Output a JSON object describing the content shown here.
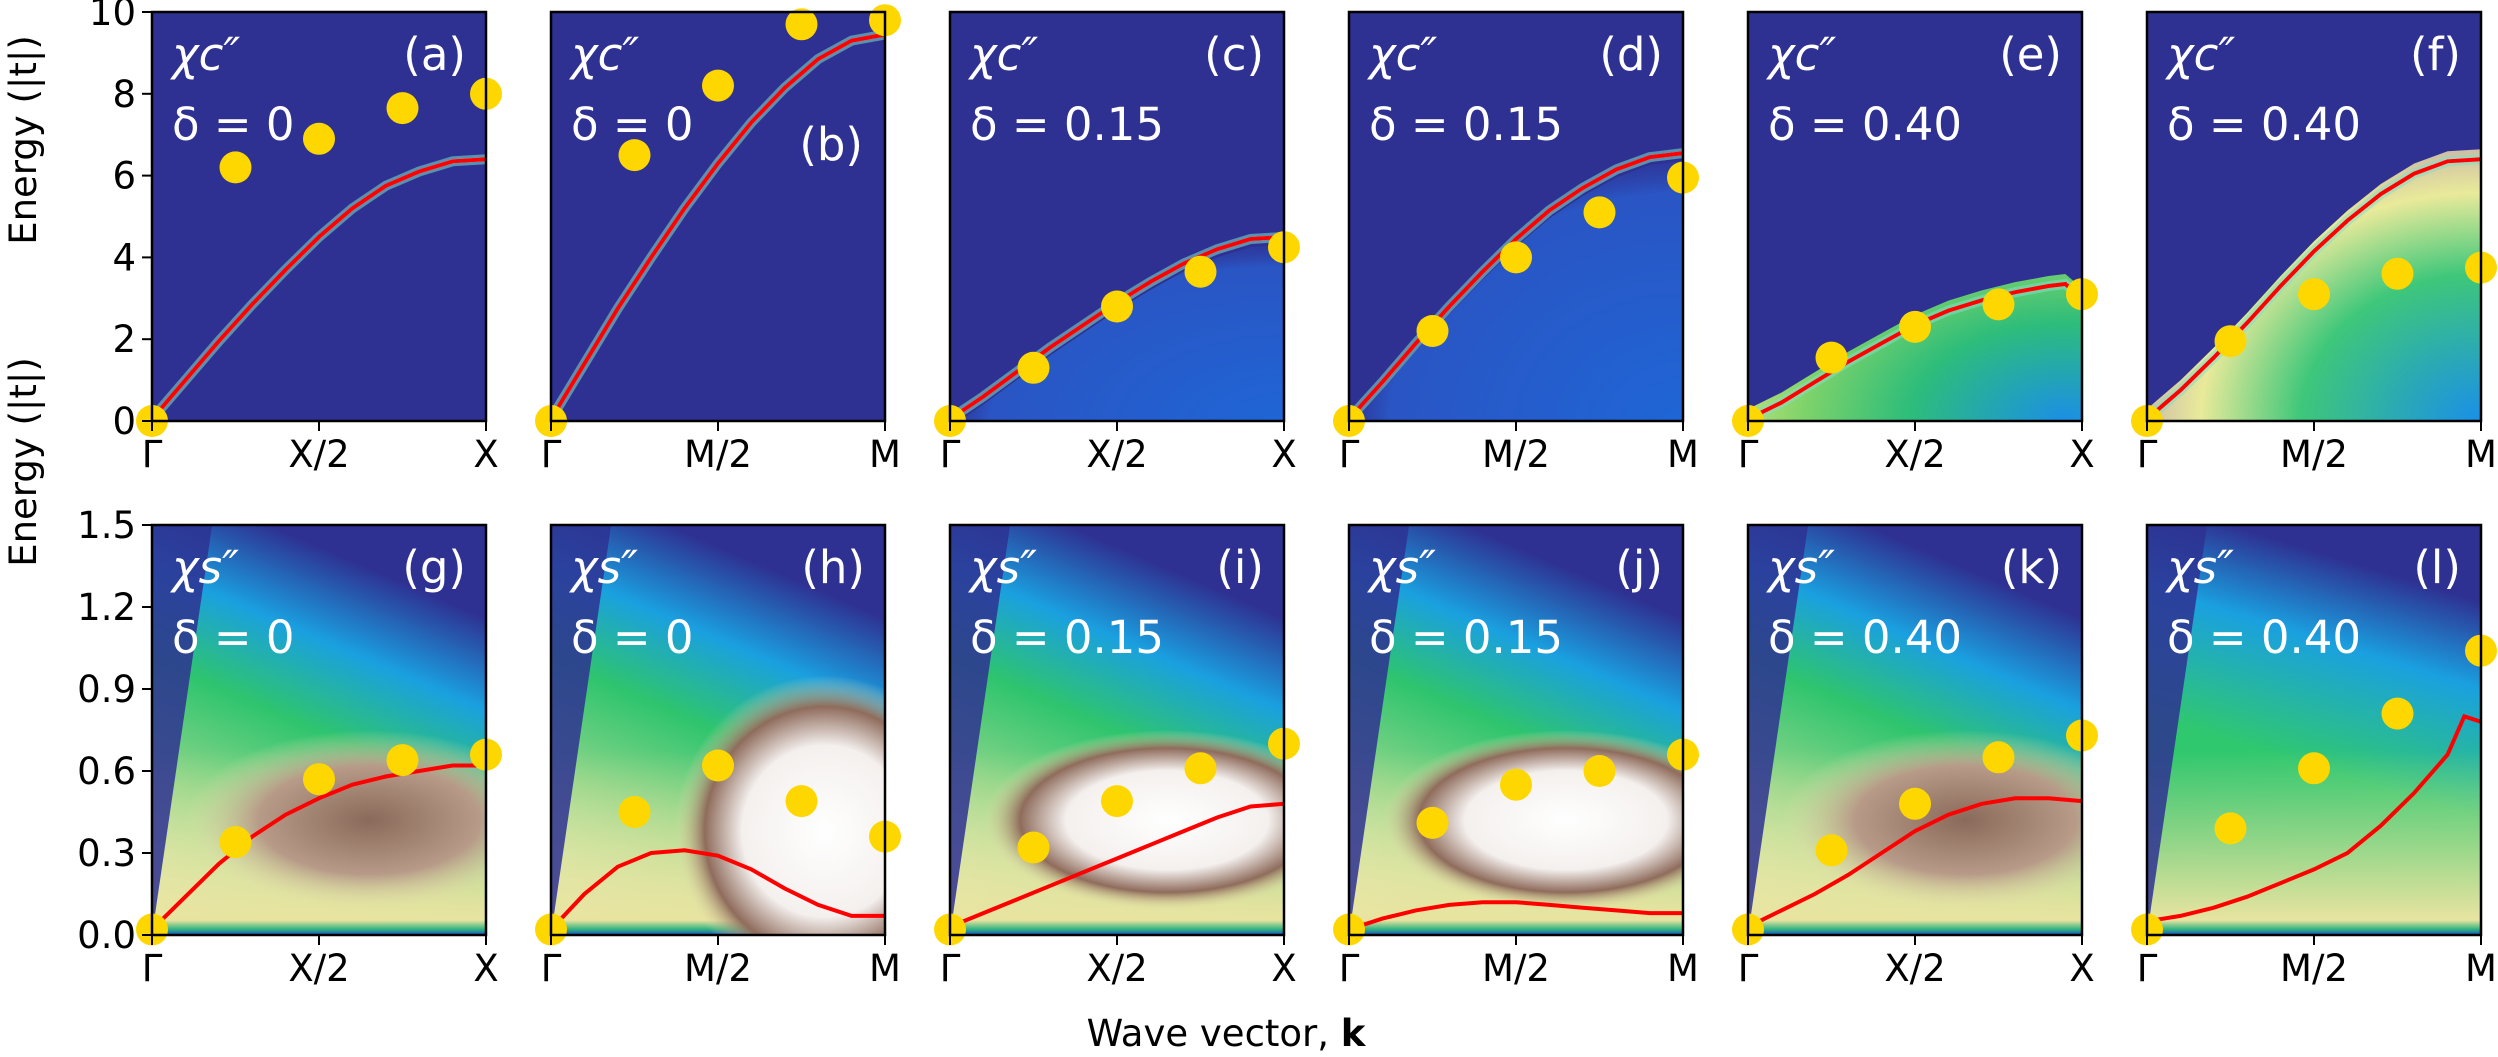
{
  "figure": {
    "y_label_top": "Energy (|t|)",
    "y_label_bottom": "Energy (|t|)",
    "x_label_text": "Wave vector, ",
    "x_label_bold": "k"
  },
  "colors": {
    "line": "#ff0000",
    "marker": "#ffd700",
    "background": "#2e3192"
  },
  "chart_data": [
    {
      "panel": "(a)",
      "type": "line",
      "row": "charge",
      "symbol": "χc″",
      "delta_label": "δ = 0",
      "xticks": [
        "Γ",
        "X/2",
        "X"
      ],
      "xlim": [
        0,
        1
      ],
      "ylim": [
        0,
        10
      ],
      "yticks": [
        "0",
        "2",
        "4",
        "6",
        "8",
        "10"
      ],
      "line": {
        "x": [
          0,
          0.1,
          0.2,
          0.3,
          0.4,
          0.5,
          0.6,
          0.7,
          0.8,
          0.9,
          1.0
        ],
        "y": [
          0.05,
          1.0,
          1.95,
          2.85,
          3.7,
          4.5,
          5.2,
          5.75,
          6.1,
          6.35,
          6.4
        ]
      },
      "markers": {
        "x": [
          0,
          0.25,
          0.5,
          0.75,
          1.0
        ],
        "y": [
          0,
          6.2,
          6.9,
          7.65,
          8.0
        ]
      }
    },
    {
      "panel": "(b)",
      "type": "line",
      "row": "charge",
      "symbol": "χc″",
      "delta_label": "δ = 0",
      "xticks": [
        "Γ",
        "M/2",
        "M"
      ],
      "xlim": [
        0,
        1
      ],
      "ylim": [
        0,
        10
      ],
      "yticks": [],
      "line": {
        "x": [
          0,
          0.1,
          0.2,
          0.3,
          0.4,
          0.5,
          0.6,
          0.7,
          0.8,
          0.9,
          1.0
        ],
        "y": [
          0.05,
          1.4,
          2.75,
          4.0,
          5.2,
          6.3,
          7.3,
          8.15,
          8.85,
          9.3,
          9.45
        ]
      },
      "markers": {
        "x": [
          0,
          0.25,
          0.5,
          0.75,
          1.0
        ],
        "y": [
          0,
          6.5,
          8.2,
          9.7,
          9.8
        ]
      }
    },
    {
      "panel": "(c)",
      "type": "line",
      "row": "charge",
      "symbol": "χc″",
      "delta_label": "δ = 0.15",
      "xticks": [
        "Γ",
        "X/2",
        "X"
      ],
      "xlim": [
        0,
        1
      ],
      "ylim": [
        0,
        10
      ],
      "yticks": [],
      "line": {
        "x": [
          0,
          0.1,
          0.2,
          0.3,
          0.4,
          0.5,
          0.6,
          0.7,
          0.8,
          0.9,
          1.0
        ],
        "y": [
          0.05,
          0.6,
          1.2,
          1.8,
          2.35,
          2.9,
          3.4,
          3.85,
          4.2,
          4.45,
          4.5
        ]
      },
      "markers": {
        "x": [
          0,
          0.25,
          0.5,
          0.75,
          1.0
        ],
        "y": [
          0,
          1.3,
          2.8,
          3.65,
          4.25
        ]
      }
    },
    {
      "panel": "(d)",
      "type": "line",
      "row": "charge",
      "symbol": "χc″",
      "delta_label": "δ = 0.15",
      "xticks": [
        "Γ",
        "M/2",
        "M"
      ],
      "xlim": [
        0,
        1
      ],
      "ylim": [
        0,
        10
      ],
      "yticks": [],
      "line": {
        "x": [
          0,
          0.1,
          0.2,
          0.3,
          0.4,
          0.5,
          0.6,
          0.7,
          0.8,
          0.9,
          1.0
        ],
        "y": [
          0.05,
          0.95,
          1.9,
          2.8,
          3.65,
          4.45,
          5.15,
          5.7,
          6.15,
          6.45,
          6.55
        ]
      },
      "markers": {
        "x": [
          0,
          0.25,
          0.5,
          0.75,
          1.0
        ],
        "y": [
          0,
          2.2,
          4.0,
          5.1,
          5.95
        ]
      }
    },
    {
      "panel": "(e)",
      "type": "line",
      "row": "charge",
      "symbol": "χc″",
      "delta_label": "δ = 0.40",
      "xticks": [
        "Γ",
        "X/2",
        "X"
      ],
      "xlim": [
        0,
        1
      ],
      "ylim": [
        0,
        10
      ],
      "yticks": [],
      "line": {
        "x": [
          0,
          0.1,
          0.2,
          0.3,
          0.4,
          0.5,
          0.6,
          0.7,
          0.8,
          0.9,
          0.95,
          1.0
        ],
        "y": [
          0.05,
          0.45,
          0.95,
          1.45,
          1.9,
          2.35,
          2.7,
          2.95,
          3.15,
          3.3,
          3.35,
          3.0
        ]
      },
      "markers": {
        "x": [
          0,
          0.25,
          0.5,
          0.75,
          1.0
        ],
        "y": [
          0,
          1.55,
          2.3,
          2.85,
          3.1
        ]
      }
    },
    {
      "panel": "(f)",
      "type": "line",
      "row": "charge",
      "symbol": "χc″",
      "delta_label": "δ = 0.40",
      "xticks": [
        "Γ",
        "M/2",
        "M"
      ],
      "xlim": [
        0,
        1
      ],
      "ylim": [
        0,
        10
      ],
      "yticks": [],
      "line": {
        "x": [
          0,
          0.1,
          0.2,
          0.3,
          0.4,
          0.5,
          0.6,
          0.7,
          0.8,
          0.9,
          1.0
        ],
        "y": [
          0.05,
          0.75,
          1.55,
          2.4,
          3.3,
          4.15,
          4.9,
          5.55,
          6.05,
          6.35,
          6.4
        ]
      },
      "markers": {
        "x": [
          0,
          0.25,
          0.5,
          0.75,
          1.0
        ],
        "y": [
          0,
          1.95,
          3.1,
          3.6,
          3.75
        ]
      }
    },
    {
      "panel": "(g)",
      "type": "line",
      "row": "spin",
      "symbol": "χs″",
      "delta_label": "δ = 0",
      "xticks": [
        "Γ",
        "X/2",
        "X"
      ],
      "xlim": [
        0,
        1
      ],
      "ylim": [
        0,
        1.5
      ],
      "yticks": [
        "0.0",
        "0.3",
        "0.6",
        "0.9",
        "1.2",
        "1.5"
      ],
      "line": {
        "x": [
          0,
          0.1,
          0.2,
          0.3,
          0.4,
          0.5,
          0.6,
          0.7,
          0.8,
          0.9,
          1.0
        ],
        "y": [
          0.02,
          0.14,
          0.26,
          0.36,
          0.44,
          0.5,
          0.55,
          0.58,
          0.6,
          0.62,
          0.62
        ]
      },
      "markers": {
        "x": [
          0,
          0.25,
          0.5,
          0.75,
          1.0
        ],
        "y": [
          0.02,
          0.34,
          0.57,
          0.64,
          0.66
        ]
      }
    },
    {
      "panel": "(h)",
      "type": "line",
      "row": "spin",
      "symbol": "χs″",
      "delta_label": "δ = 0",
      "xticks": [
        "Γ",
        "M/2",
        "M"
      ],
      "xlim": [
        0,
        1
      ],
      "ylim": [
        0,
        1.5
      ],
      "yticks": [],
      "line": {
        "x": [
          0,
          0.1,
          0.2,
          0.3,
          0.4,
          0.5,
          0.6,
          0.7,
          0.8,
          0.9,
          1.0
        ],
        "y": [
          0.02,
          0.15,
          0.25,
          0.3,
          0.31,
          0.29,
          0.24,
          0.17,
          0.11,
          0.07,
          0.07
        ]
      },
      "markers": {
        "x": [
          0,
          0.25,
          0.5,
          0.75,
          1.0
        ],
        "y": [
          0.02,
          0.45,
          0.62,
          0.49,
          0.36
        ]
      }
    },
    {
      "panel": "(i)",
      "type": "line",
      "row": "spin",
      "symbol": "χs″",
      "delta_label": "δ = 0.15",
      "xticks": [
        "Γ",
        "X/2",
        "X"
      ],
      "xlim": [
        0,
        1
      ],
      "ylim": [
        0,
        1.5
      ],
      "yticks": [],
      "line": {
        "x": [
          0,
          0.1,
          0.2,
          0.3,
          0.4,
          0.5,
          0.6,
          0.7,
          0.8,
          0.9,
          1.0
        ],
        "y": [
          0.03,
          0.08,
          0.13,
          0.18,
          0.23,
          0.28,
          0.33,
          0.38,
          0.43,
          0.47,
          0.48
        ]
      },
      "markers": {
        "x": [
          0,
          0.25,
          0.5,
          0.75,
          1.0
        ],
        "y": [
          0.02,
          0.32,
          0.49,
          0.61,
          0.7
        ]
      }
    },
    {
      "panel": "(j)",
      "type": "line",
      "row": "spin",
      "symbol": "χs″",
      "delta_label": "δ = 0.15",
      "xticks": [
        "Γ",
        "M/2",
        "M"
      ],
      "xlim": [
        0,
        1
      ],
      "ylim": [
        0,
        1.5
      ],
      "yticks": [],
      "line": {
        "x": [
          0,
          0.1,
          0.2,
          0.3,
          0.4,
          0.5,
          0.6,
          0.7,
          0.8,
          0.9,
          1.0
        ],
        "y": [
          0.02,
          0.06,
          0.09,
          0.11,
          0.12,
          0.12,
          0.11,
          0.1,
          0.09,
          0.08,
          0.08
        ]
      },
      "markers": {
        "x": [
          0,
          0.25,
          0.5,
          0.75,
          1.0
        ],
        "y": [
          0.02,
          0.41,
          0.55,
          0.6,
          0.66
        ]
      }
    },
    {
      "panel": "(k)",
      "type": "line",
      "row": "spin",
      "symbol": "χs″",
      "delta_label": "δ = 0.40",
      "xticks": [
        "Γ",
        "X/2",
        "X"
      ],
      "xlim": [
        0,
        1
      ],
      "ylim": [
        0,
        1.5
      ],
      "yticks": [],
      "line": {
        "x": [
          0,
          0.1,
          0.2,
          0.3,
          0.4,
          0.5,
          0.6,
          0.7,
          0.8,
          0.9,
          1.0
        ],
        "y": [
          0.03,
          0.09,
          0.15,
          0.22,
          0.3,
          0.38,
          0.44,
          0.48,
          0.5,
          0.5,
          0.49
        ]
      },
      "markers": {
        "x": [
          0,
          0.25,
          0.5,
          0.75,
          1.0
        ],
        "y": [
          0.02,
          0.31,
          0.48,
          0.65,
          0.73
        ]
      }
    },
    {
      "panel": "(l)",
      "type": "line",
      "row": "spin",
      "symbol": "χs″",
      "delta_label": "δ = 0.40",
      "xticks": [
        "Γ",
        "M/2",
        "M"
      ],
      "xlim": [
        0,
        1
      ],
      "ylim": [
        0,
        1.5
      ],
      "yticks": [],
      "line": {
        "x": [
          0,
          0.1,
          0.2,
          0.3,
          0.4,
          0.5,
          0.6,
          0.7,
          0.8,
          0.9,
          0.95,
          1.0
        ],
        "y": [
          0.05,
          0.07,
          0.1,
          0.14,
          0.19,
          0.24,
          0.3,
          0.4,
          0.52,
          0.66,
          0.8,
          0.78
        ]
      },
      "markers": {
        "x": [
          0,
          0.25,
          0.5,
          0.75,
          1.0
        ],
        "y": [
          0.02,
          0.39,
          0.61,
          0.81,
          1.04
        ]
      }
    }
  ]
}
